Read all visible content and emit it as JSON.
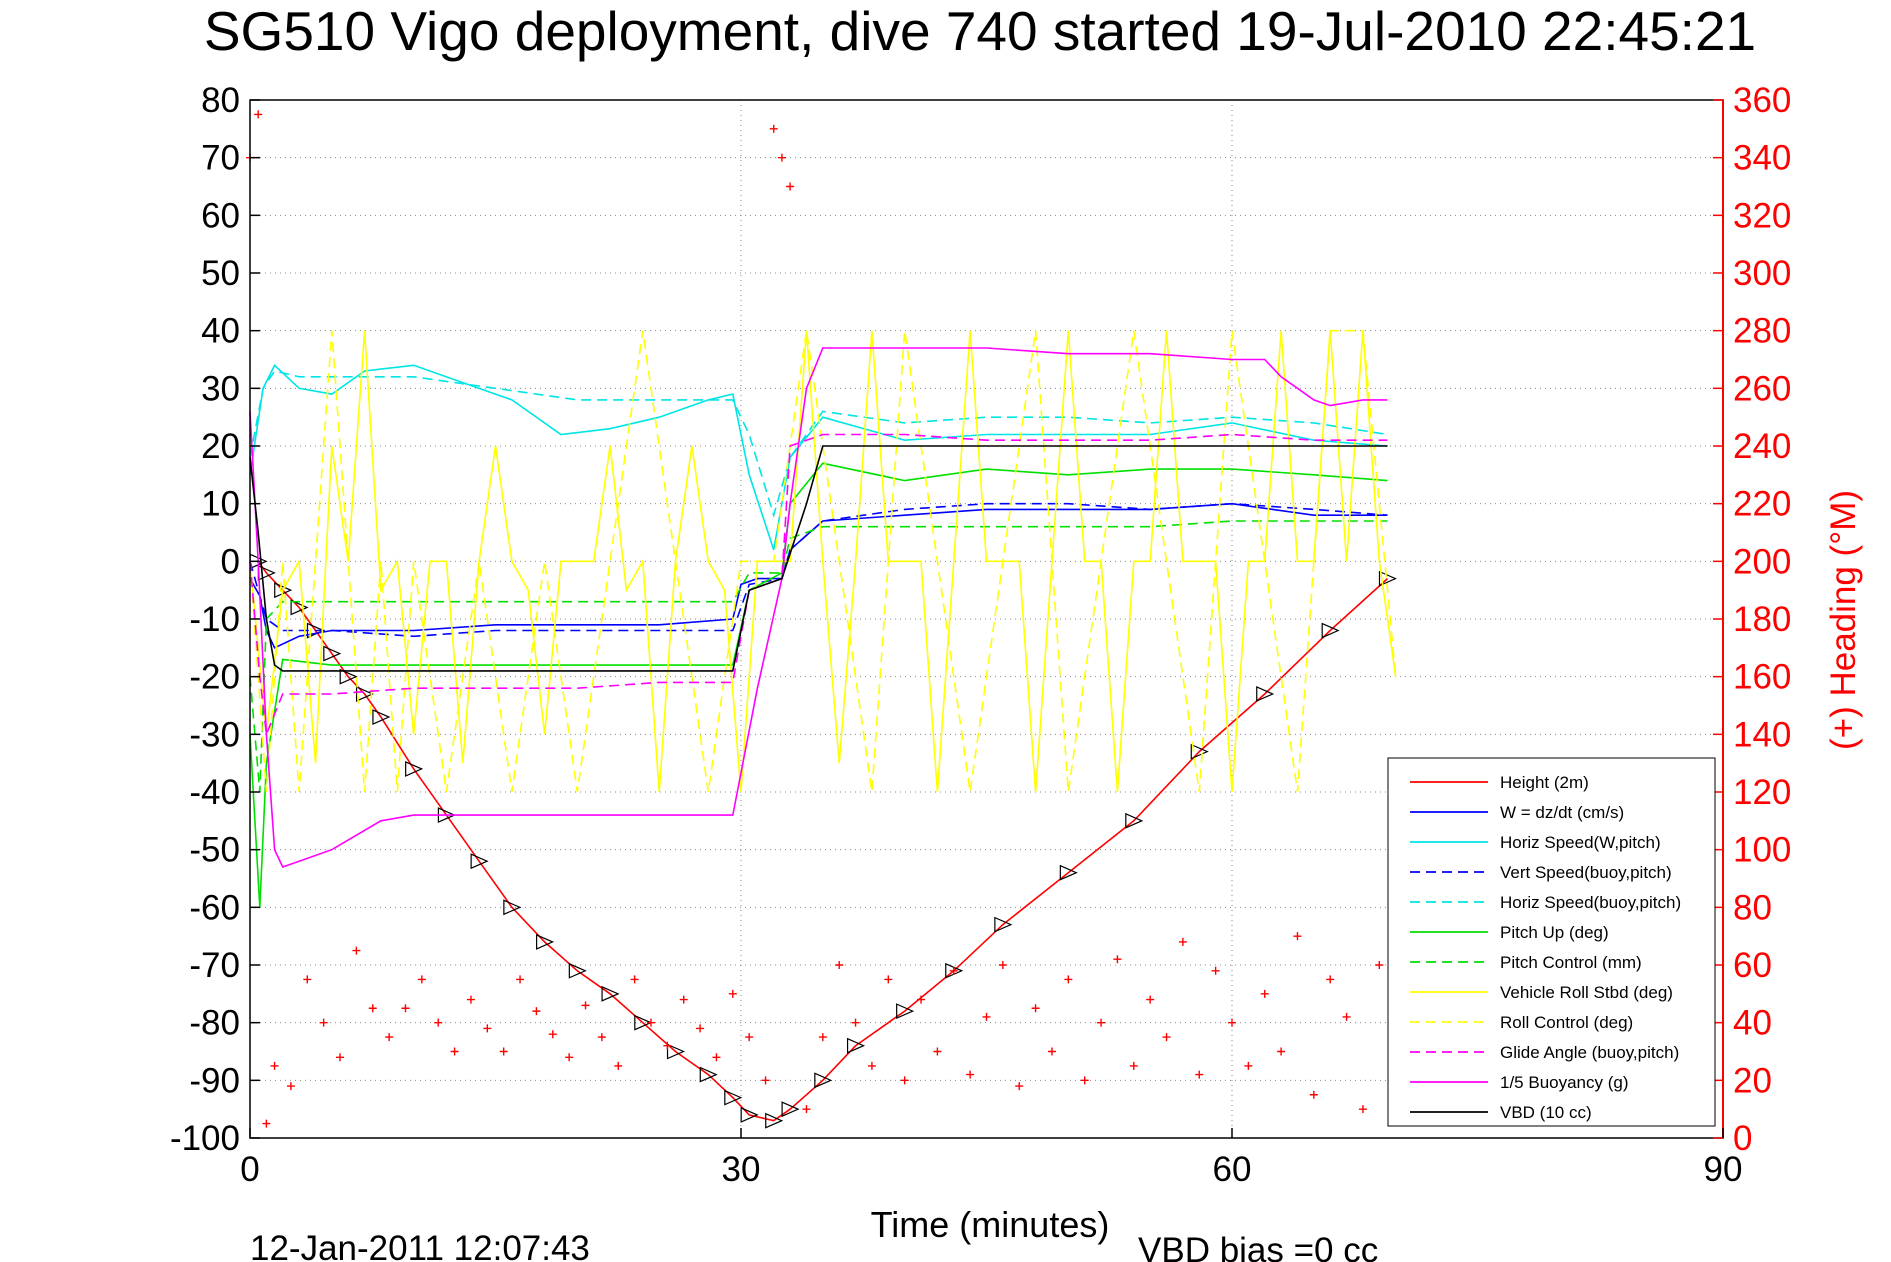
{
  "chart_data": {
    "type": "line",
    "title": "SG510 Vigo deployment, dive 740 started 19-Jul-2010 22:45:21",
    "xlabel": "Time (minutes)",
    "ylabel_left": "",
    "ylabel_right": "(+) Heading (°M)",
    "footer_date": "12-Jan-2011 12:07:43",
    "footer_bias": "VBD bias =0 cc",
    "xlim": [
      0,
      90
    ],
    "ylim_left": [
      -100,
      80
    ],
    "ylim_right": [
      0,
      360
    ],
    "x_ticks": [
      "0",
      "30",
      "60",
      "90"
    ],
    "y_ticks_left": [
      "80",
      "70",
      "60",
      "50",
      "40",
      "30",
      "20",
      "10",
      "0",
      "-10",
      "-20",
      "-30",
      "-40",
      "-50",
      "-60",
      "-70",
      "-80",
      "-90",
      "-100"
    ],
    "y_ticks_right": [
      "360",
      "340",
      "320",
      "300",
      "280",
      "260",
      "240",
      "220",
      "200",
      "180",
      "160",
      "140",
      "120",
      "100",
      "80",
      "60",
      "40",
      "20",
      "0"
    ],
    "grid": true,
    "legend_position": "lower-right",
    "colors": {
      "red": "#ff0000",
      "blue": "#0000ff",
      "cyan": "#00e5e5",
      "green": "#00e000",
      "yellow": "#ffff00",
      "magenta": "#ff00ff",
      "black": "#000000"
    },
    "series": [
      {
        "name": "Height (2m)",
        "color": "#ff0000",
        "dash": "solid",
        "x": [
          0.5,
          1,
          2,
          3,
          4,
          5,
          6,
          7,
          8,
          10,
          12,
          14,
          16,
          18,
          20,
          22,
          24,
          26,
          28,
          29.5,
          30.5,
          32,
          33,
          35,
          37,
          40,
          43,
          46,
          50,
          54,
          58,
          62,
          66,
          69.5
        ],
        "y": [
          0,
          -2,
          -5,
          -8,
          -12,
          -16,
          -20,
          -23,
          -27,
          -36,
          -44,
          -52,
          -60,
          -66,
          -71,
          -75,
          -80,
          -85,
          -89,
          -93,
          -96,
          -97,
          -95,
          -90,
          -84,
          -78,
          -71,
          -63,
          -54,
          -45,
          -33,
          -23,
          -12,
          -3
        ]
      },
      {
        "name": "W = dz/dt (cm/s)",
        "color": "#0000ff",
        "dash": "solid",
        "x": [
          0,
          0.6,
          1,
          1.5,
          3,
          5,
          10,
          15,
          20,
          25,
          29.5,
          30,
          31,
          32.5,
          33,
          35,
          40,
          45,
          50,
          55,
          60,
          65,
          69.5
        ],
        "y": [
          -3,
          -6,
          -12,
          -15,
          -13,
          -12,
          -12,
          -11,
          -11,
          -11,
          -10,
          -4,
          -3,
          -3,
          2,
          7,
          8,
          9,
          9,
          9,
          10,
          8,
          8
        ]
      },
      {
        "name": "Horiz Speed(W,pitch)",
        "color": "#00e5e5",
        "dash": "solid",
        "x": [
          0,
          0.8,
          1.5,
          3,
          5,
          7,
          10,
          13,
          16,
          19,
          22,
          25,
          28,
          29.5,
          30.5,
          32,
          33,
          35,
          40,
          45,
          50,
          55,
          60,
          65,
          69.5
        ],
        "y": [
          15,
          30,
          34,
          30,
          29,
          33,
          34,
          31,
          28,
          22,
          23,
          25,
          28,
          29,
          15,
          2,
          18,
          25,
          21,
          22,
          22,
          22,
          24,
          21,
          20
        ]
      },
      {
        "name": "Vert Speed(buoy,pitch)",
        "color": "#0000ff",
        "dash": "dash",
        "x": [
          0,
          0.6,
          1,
          2,
          5,
          10,
          15,
          20,
          25,
          29.5,
          30.5,
          32.5,
          33,
          35,
          40,
          45,
          50,
          55,
          60,
          65,
          69.5
        ],
        "y": [
          0,
          -6,
          -10,
          -12,
          -12,
          -13,
          -12,
          -12,
          -12,
          -12,
          -4,
          -3,
          2,
          7,
          9,
          10,
          10,
          9,
          10,
          9,
          8
        ]
      },
      {
        "name": "Horiz Speed(buoy,pitch)",
        "color": "#00e5e5",
        "dash": "dash",
        "x": [
          0,
          0.8,
          1.5,
          3,
          5,
          10,
          15,
          20,
          25,
          29.5,
          30.5,
          32,
          33,
          35,
          40,
          45,
          50,
          55,
          60,
          65,
          69.5
        ],
        "y": [
          18,
          30,
          33,
          32,
          32,
          32,
          30,
          28,
          28,
          28,
          22,
          8,
          18,
          26,
          24,
          25,
          25,
          24,
          25,
          24,
          22
        ]
      },
      {
        "name": "Pitch Up (deg)",
        "color": "#00e000",
        "dash": "solid",
        "x": [
          0,
          0.6,
          1,
          2,
          5,
          10,
          15,
          20,
          25,
          29.5,
          30.5,
          32.5,
          33,
          35,
          40,
          45,
          50,
          55,
          60,
          65,
          69.5
        ],
        "y": [
          -30,
          -60,
          -35,
          -17,
          -18,
          -18,
          -18,
          -18,
          -18,
          -18,
          -5,
          -2,
          10,
          17,
          14,
          16,
          15,
          16,
          16,
          15,
          14
        ]
      },
      {
        "name": "Pitch Control (mm)",
        "color": "#00e000",
        "dash": "dash",
        "x": [
          0,
          0.6,
          1,
          2,
          5,
          10,
          15,
          20,
          25,
          29.5,
          30.5,
          32.5,
          33,
          35,
          40,
          45,
          50,
          55,
          60,
          65,
          69.5
        ],
        "y": [
          -20,
          -40,
          -10,
          -7,
          -7,
          -7,
          -7,
          -7,
          -7,
          -7,
          -2,
          -2,
          4,
          6,
          6,
          6,
          6,
          6,
          7,
          7,
          7
        ]
      },
      {
        "name": "Vehicle Roll Stbd (deg)",
        "color": "#ffff00",
        "dash": "solid",
        "x": [
          0,
          1,
          2,
          3,
          4,
          5,
          6,
          7,
          8,
          9,
          10,
          11,
          12,
          13,
          14,
          15,
          16,
          17,
          18,
          19,
          20,
          21,
          22,
          23,
          24,
          25,
          26,
          27,
          28,
          29,
          30,
          31,
          32,
          33,
          34,
          35,
          36,
          37,
          38,
          39,
          40,
          41,
          42,
          43,
          44,
          45,
          46,
          47,
          48,
          49,
          50,
          51,
          52,
          53,
          54,
          55,
          56,
          57,
          58,
          59,
          60,
          61,
          62,
          63,
          64,
          65,
          66,
          67,
          68,
          69,
          70
        ],
        "y": [
          0,
          -30,
          -5,
          0,
          -35,
          20,
          0,
          40,
          -5,
          0,
          -30,
          0,
          0,
          -35,
          0,
          20,
          0,
          -5,
          -30,
          0,
          0,
          0,
          20,
          -5,
          0,
          -40,
          0,
          20,
          0,
          -5,
          -40,
          0,
          0,
          0,
          40,
          0,
          -35,
          0,
          40,
          0,
          0,
          0,
          -40,
          0,
          40,
          0,
          0,
          0,
          -40,
          0,
          40,
          0,
          0,
          -40,
          0,
          0,
          40,
          0,
          0,
          0,
          -40,
          0,
          0,
          40,
          0,
          0,
          40,
          0,
          40,
          0,
          -20
        ]
      },
      {
        "name": "Roll Control (deg)",
        "color": "#ffff00",
        "dash": "dash",
        "x": [
          0,
          1,
          2,
          3,
          4,
          5,
          6,
          7,
          8,
          9,
          10,
          12,
          14,
          16,
          18,
          20,
          22,
          24,
          26,
          28,
          30,
          32,
          34,
          36,
          38,
          40,
          42,
          44,
          46,
          48,
          50,
          52,
          54,
          56,
          58,
          60,
          62,
          64,
          66,
          68,
          70
        ],
        "y": [
          0,
          -40,
          0,
          -40,
          0,
          40,
          0,
          -40,
          0,
          -40,
          0,
          -40,
          0,
          -40,
          0,
          -40,
          0,
          40,
          0,
          -40,
          0,
          0,
          40,
          0,
          -40,
          40,
          0,
          -40,
          0,
          40,
          -40,
          0,
          40,
          0,
          -40,
          40,
          0,
          -40,
          40,
          40,
          -20
        ]
      },
      {
        "name": "Glide Angle (buoy,pitch)",
        "color": "#ff00ff",
        "dash": "dash",
        "x": [
          0,
          0.6,
          1,
          2,
          5,
          10,
          15,
          20,
          25,
          29.5,
          30.5,
          32.5,
          33,
          35,
          40,
          45,
          50,
          55,
          60,
          65,
          69.5
        ],
        "y": [
          0,
          -20,
          -30,
          -23,
          -23,
          -22,
          -22,
          -22,
          -21,
          -21,
          -5,
          -3,
          20,
          22,
          22,
          21,
          21,
          21,
          22,
          21,
          21
        ]
      },
      {
        "name": "1/5 Buoyancy (g)",
        "color": "#ff00ff",
        "dash": "solid",
        "x": [
          0,
          0.5,
          1,
          1.5,
          2,
          3,
          5,
          8,
          10,
          15,
          20,
          25,
          29.5,
          31,
          32.5,
          33,
          34,
          35,
          40,
          45,
          50,
          55,
          60,
          62,
          63,
          64,
          65,
          66,
          68,
          69.5
        ],
        "y": [
          26,
          0,
          -30,
          -50,
          -53,
          -52,
          -50,
          -45,
          -44,
          -44,
          -44,
          -44,
          -44,
          -22,
          -3,
          10,
          30,
          37,
          37,
          37,
          36,
          36,
          35,
          35,
          32,
          30,
          28,
          27,
          28,
          28
        ]
      },
      {
        "name": "VBD (10 cc)",
        "color": "#000000",
        "dash": "solid",
        "x": [
          0,
          0.5,
          1,
          1.5,
          2,
          29.5,
          30.5,
          32.5,
          34,
          35,
          40,
          50,
          60,
          69.5
        ],
        "y": [
          18,
          5,
          -10,
          -18,
          -19,
          -19,
          -5,
          -3,
          10,
          20,
          20,
          20,
          20,
          20
        ]
      },
      {
        "name": "Heading (deg M)",
        "color": "#ff0000",
        "dash": "plus",
        "axis": "right",
        "x": [
          0,
          0.5,
          1,
          1.5,
          2.5,
          3.5,
          4.5,
          5.5,
          6.5,
          7.5,
          8.5,
          9.5,
          10.5,
          11.5,
          12.5,
          13.5,
          14.5,
          15.5,
          16.5,
          17.5,
          18.5,
          19.5,
          20.5,
          21.5,
          22.5,
          23.5,
          24.5,
          25.5,
          26.5,
          27.5,
          28.5,
          29.5,
          30.5,
          31.5,
          32,
          32.5,
          33,
          34,
          35,
          36,
          37,
          38,
          39,
          40,
          41,
          42,
          43,
          44,
          45,
          46,
          47,
          48,
          49,
          50,
          51,
          52,
          53,
          54,
          55,
          56,
          57,
          58,
          59,
          60,
          61,
          62,
          63,
          64,
          65,
          66,
          67,
          68,
          69,
          70
        ],
        "y": [
          340,
          355,
          5,
          25,
          18,
          55,
          40,
          28,
          65,
          45,
          35,
          45,
          55,
          40,
          30,
          48,
          38,
          30,
          55,
          44,
          36,
          28,
          46,
          35,
          25,
          55,
          40,
          32,
          48,
          38,
          28,
          50,
          35,
          20,
          350,
          340,
          330,
          10,
          35,
          60,
          40,
          25,
          55,
          20,
          48,
          30,
          58,
          22,
          42,
          60,
          18,
          45,
          30,
          55,
          20,
          40,
          62,
          25,
          48,
          35,
          68,
          22,
          58,
          40,
          25,
          50,
          30,
          70,
          15,
          55,
          42,
          10,
          60,
          40
        ]
      }
    ]
  },
  "legend_entries": [
    {
      "label": "Height (2m)",
      "color": "#ff0000",
      "dash": "solid"
    },
    {
      "label": "W = dz/dt (cm/s)",
      "color": "#0000ff",
      "dash": "solid"
    },
    {
      "label": "Horiz Speed(W,pitch)",
      "color": "#00e5e5",
      "dash": "solid"
    },
    {
      "label": "Vert Speed(buoy,pitch)",
      "color": "#0000ff",
      "dash": "dash"
    },
    {
      "label": "Horiz Speed(buoy,pitch)",
      "color": "#00e5e5",
      "dash": "dash"
    },
    {
      "label": "Pitch Up (deg)",
      "color": "#00e000",
      "dash": "solid"
    },
    {
      "label": "Pitch Control (mm)",
      "color": "#00e000",
      "dash": "dash"
    },
    {
      "label": "Vehicle Roll Stbd (deg)",
      "color": "#ffff00",
      "dash": "solid"
    },
    {
      "label": "Roll Control (deg)",
      "color": "#ffff00",
      "dash": "dash"
    },
    {
      "label": "Glide Angle (buoy,pitch)",
      "color": "#ff00ff",
      "dash": "dash"
    },
    {
      "label": "1/5 Buoyancy (g)",
      "color": "#ff00ff",
      "dash": "solid"
    },
    {
      "label": "VBD (10 cc)",
      "color": "#000000",
      "dash": "solid"
    }
  ]
}
